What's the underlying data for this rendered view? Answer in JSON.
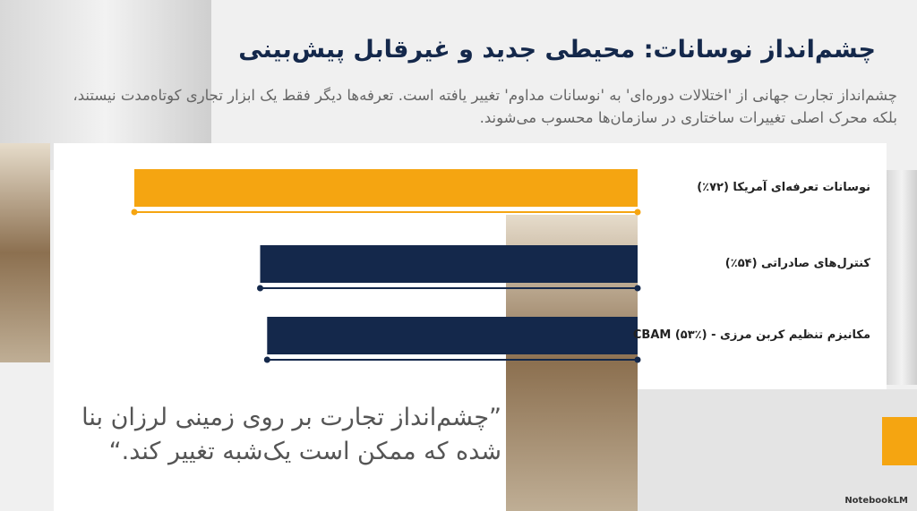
{
  "chart_data": {
    "type": "bar",
    "title": "چشم‌انداز نوسانات: محیطی جدید و غیرقابل پیش‌بینی",
    "subtitle": "چشم‌انداز تجارت جهانی از 'اختلالات دوره‌ای' به 'نوسانات مداوم' تغییر یافته است. تعرفه‌ها دیگر فقط یک ابزار تجاری کوتاه‌مدت نیستند، بلکه محرک اصلی تغییرات ساختاری در سازمان‌ها محسوب می‌شوند.",
    "categories": [
      "نوسانات تعرفه‌ای آمریکا (۷۲٪)",
      "کنترل‌های صادراتی (۵۴٪)",
      "مکانیزم تنظیم کربن مرزی - CBAM (۵۳٪)"
    ],
    "values": [
      72,
      54,
      53
    ],
    "colors": [
      "#f5a511",
      "#14284b",
      "#14284b"
    ],
    "xlim": [
      0,
      72
    ],
    "annotation": "”چشم‌انداز تجارت بر روی زمینی لرزان بنا شده که ممکن است یک‌شبه تغییر کند.“",
    "footer": "NotebookLM"
  }
}
